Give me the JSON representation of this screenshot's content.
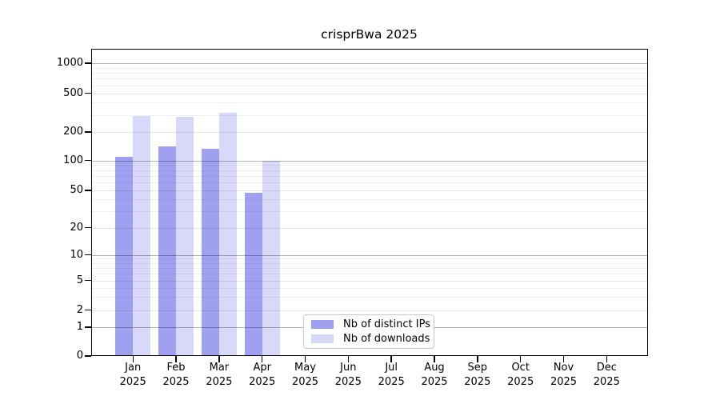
{
  "title": "crisprBwa 2025",
  "chart_data": {
    "type": "bar",
    "title": "crisprBwa 2025",
    "categories": [
      "Jan",
      "Feb",
      "Mar",
      "Apr",
      "May",
      "Jun",
      "Jul",
      "Aug",
      "Sep",
      "Oct",
      "Nov",
      "Dec"
    ],
    "category_year": "2025",
    "series": [
      {
        "name": "Nb of distinct IPs",
        "color": "#a0a0f0",
        "values": [
          110,
          140,
          134,
          47,
          0,
          0,
          0,
          0,
          0,
          0,
          0,
          0
        ]
      },
      {
        "name": "Nb of downloads",
        "color": "#d8d8f8",
        "values": [
          290,
          285,
          315,
          100,
          0,
          0,
          0,
          0,
          0,
          0,
          0,
          0
        ]
      }
    ],
    "yscale": "log-like (linear 0-1, log above)",
    "ytick_labels": [
      "0",
      "1",
      "2",
      "5",
      "10",
      "20",
      "50",
      "100",
      "200",
      "500",
      "1000"
    ],
    "ytick_values": [
      0,
      1,
      2,
      5,
      10,
      20,
      50,
      100,
      200,
      500,
      1000
    ],
    "ylim": [
      0,
      1400
    ],
    "grid": true,
    "legend_position": "lower center"
  }
}
